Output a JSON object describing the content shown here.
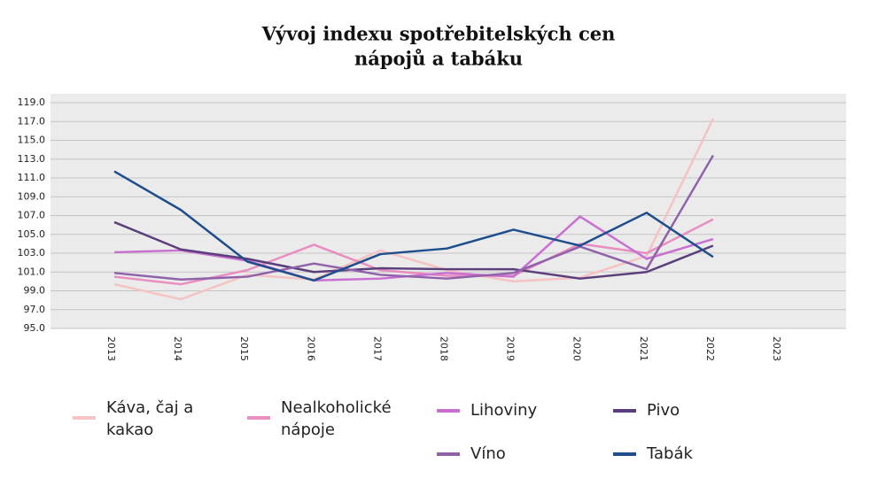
{
  "chart_data": {
    "type": "line",
    "title": [
      "Vývoj indexu spotřebitelských cen",
      "nápojů a tabáku"
    ],
    "categories": [
      "2013",
      "2014",
      "2015",
      "2016",
      "2017",
      "2018",
      "2019",
      "2020",
      "2021",
      "2022",
      "2023"
    ],
    "series": [
      {
        "name": "Káva, čaj a kakao",
        "color": "#f5c3c3",
        "values": [
          99.7,
          98.1,
          100.7,
          100.2,
          103.3,
          101.2,
          100.0,
          100.4,
          102.7,
          117.3,
          null
        ]
      },
      {
        "name": "Nealkoholické nápoje",
        "color": "#ea8dc0",
        "values": [
          100.5,
          99.7,
          101.2,
          103.9,
          101.2,
          100.6,
          100.6,
          104.0,
          103.0,
          106.6,
          null
        ]
      },
      {
        "name": "Lihoviny",
        "color": "#c96fd2",
        "values": [
          103.1,
          103.3,
          102.2,
          100.1,
          100.3,
          100.9,
          100.5,
          106.9,
          102.4,
          104.5,
          null
        ]
      },
      {
        "name": "Pivo",
        "color": "#5b3f7c",
        "values": [
          106.3,
          103.4,
          102.4,
          101.0,
          101.4,
          101.3,
          101.3,
          100.3,
          101.0,
          103.8,
          null
        ]
      },
      {
        "name": "Víno",
        "color": "#9062aa",
        "values": [
          100.9,
          100.2,
          100.5,
          101.9,
          100.7,
          100.3,
          100.9,
          103.7,
          101.3,
          113.4,
          null
        ]
      },
      {
        "name": "Tabák",
        "color": "#1f4e8c",
        "values": [
          111.7,
          107.6,
          102.1,
          100.1,
          102.9,
          103.5,
          105.5,
          103.8,
          107.3,
          102.6,
          null
        ]
      }
    ],
    "ylim": [
      95,
      119
    ],
    "yticks": [
      {
        "value": 95,
        "label": "95.0"
      },
      {
        "value": 97,
        "label": "97.0"
      },
      {
        "value": 99,
        "label": "99.0"
      },
      {
        "value": 101,
        "label": "101.0"
      },
      {
        "value": 103,
        "label": "103.0"
      },
      {
        "value": 105,
        "label": "105.0"
      },
      {
        "value": 107,
        "label": "107.0"
      },
      {
        "value": 109,
        "label": "109.0"
      },
      {
        "value": 111,
        "label": "111.0"
      },
      {
        "value": 113,
        "label": "113.0"
      },
      {
        "value": 115,
        "label": "115.0"
      },
      {
        "value": 117,
        "label": "117.0"
      },
      {
        "value": 119,
        "label": "119.0"
      }
    ],
    "grid": true
  }
}
